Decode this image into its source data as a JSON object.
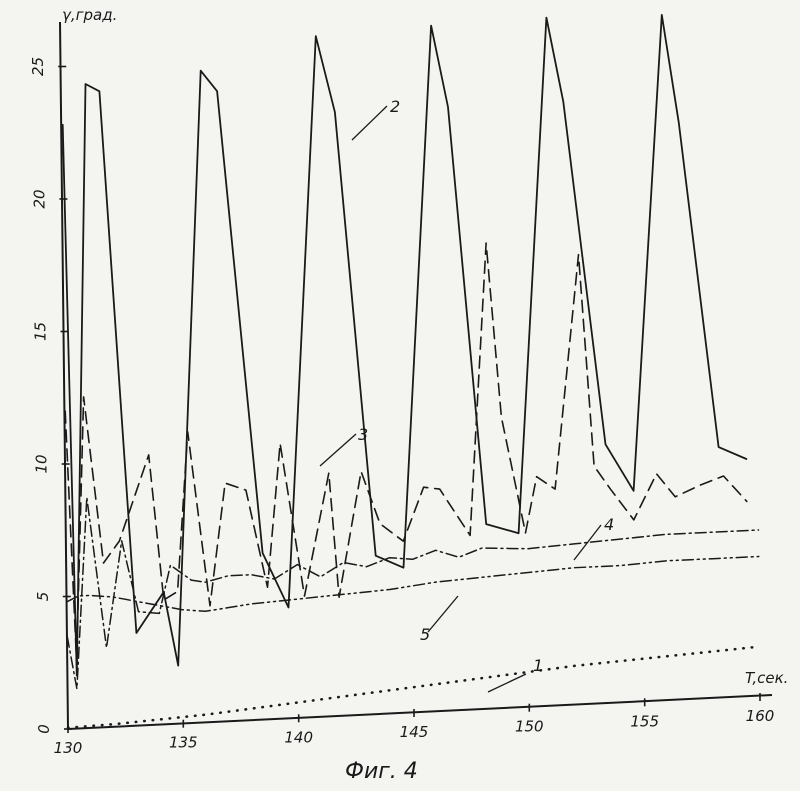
{
  "chart_data": {
    "type": "line",
    "xlabel": "T,сек.",
    "ylabel": "γ,град.",
    "caption": "Фиг. 4",
    "xlim": [
      130,
      160
    ],
    "ylim": [
      0,
      26
    ],
    "x_ticks": [
      "130",
      "135",
      "140",
      "145",
      "150",
      "155",
      "160"
    ],
    "y_ticks": [
      "0",
      "5",
      "10",
      "15",
      "20",
      "25"
    ],
    "grid": false,
    "series": [
      {
        "name": "1",
        "style": "dotted",
        "x": [
          130,
          132,
          134,
          136,
          138,
          140,
          142,
          144,
          146,
          148,
          150,
          152,
          154,
          156,
          158,
          160
        ],
        "y": [
          0.05,
          0.1,
          0.2,
          0.3,
          0.45,
          0.6,
          0.75,
          0.9,
          1.05,
          1.2,
          1.35,
          1.5,
          1.6,
          1.7,
          1.8,
          1.9
        ]
      },
      {
        "name": "2",
        "style": "solid",
        "x": [
          130,
          130.4,
          131,
          131.6,
          133,
          134.2,
          134.8,
          136,
          136.7,
          138.5,
          139.6,
          141,
          141.8,
          143.4,
          144.6,
          146,
          146.7,
          148.2,
          149.6,
          151,
          151.7,
          153.4,
          154.6,
          156,
          156.7,
          158.3,
          159.5
        ],
        "y": [
          22.8,
          2,
          24.3,
          24,
          3.5,
          5,
          2.2,
          24.6,
          23.8,
          6.3,
          4.2,
          25.7,
          22.8,
          6,
          5.5,
          25.9,
          22.8,
          7,
          6.6,
          26,
          22.8,
          9.8,
          8,
          25.9,
          21.8,
          9.5,
          9
        ]
      },
      {
        "name": "3",
        "style": "dashed",
        "x": [
          130,
          130.4,
          130.8,
          131.6,
          132.3,
          133.6,
          134.2,
          134.8,
          135.3,
          136.2,
          136.9,
          137.8,
          138.7,
          139.3,
          140.3,
          141.4,
          141.8,
          142.8,
          143.6,
          144.6,
          145.5,
          146.2,
          147.5,
          148.3,
          148.9,
          149.9,
          150.4,
          151.2,
          152.3,
          152.9,
          153.6,
          154.6,
          155.6,
          156.4,
          157.5,
          158.5,
          159.5
        ],
        "y": [
          12,
          2.5,
          12.5,
          6.2,
          7,
          10.2,
          4.7,
          5,
          11,
          4.4,
          9,
          8.7,
          5,
          10.4,
          4.6,
          9.2,
          4.5,
          9.2,
          7.2,
          6.5,
          8.5,
          8.4,
          6.6,
          17.6,
          11,
          6.6,
          8.7,
          8.2,
          17,
          9,
          8.1,
          6.9,
          8.6,
          7.7,
          8.1,
          8.4,
          7.4
        ]
      },
      {
        "name": "4",
        "style": "dash-dot",
        "x": [
          130,
          130.4,
          130.9,
          131.7,
          132.4,
          133.1,
          134,
          134.5,
          135.4,
          136,
          137,
          138,
          139,
          140,
          141,
          142,
          143,
          144,
          145,
          146,
          147,
          148,
          150,
          152,
          154,
          156,
          158,
          160
        ],
        "y": [
          3.5,
          1.5,
          8.7,
          3,
          7,
          4.3,
          4.2,
          6,
          5.4,
          5.3,
          5.5,
          5.5,
          5.3,
          5.8,
          5.3,
          5.8,
          5.6,
          5.9,
          5.8,
          6.1,
          5.8,
          6.1,
          6,
          6.1,
          6.2,
          6.3,
          6.3,
          6.3
        ]
      },
      {
        "name": "5",
        "style": "dash-dot-dot",
        "x": [
          130,
          130.5,
          131,
          132,
          133,
          134,
          135,
          136,
          138,
          140,
          142,
          144,
          146,
          148,
          150,
          152,
          154,
          156,
          158,
          160
        ],
        "y": [
          4.8,
          5,
          5,
          4.9,
          4.7,
          4.5,
          4.3,
          4.2,
          4.4,
          4.5,
          4.6,
          4.7,
          4.9,
          5,
          5.1,
          5.2,
          5.2,
          5.3,
          5.3,
          5.3
        ]
      }
    ]
  }
}
